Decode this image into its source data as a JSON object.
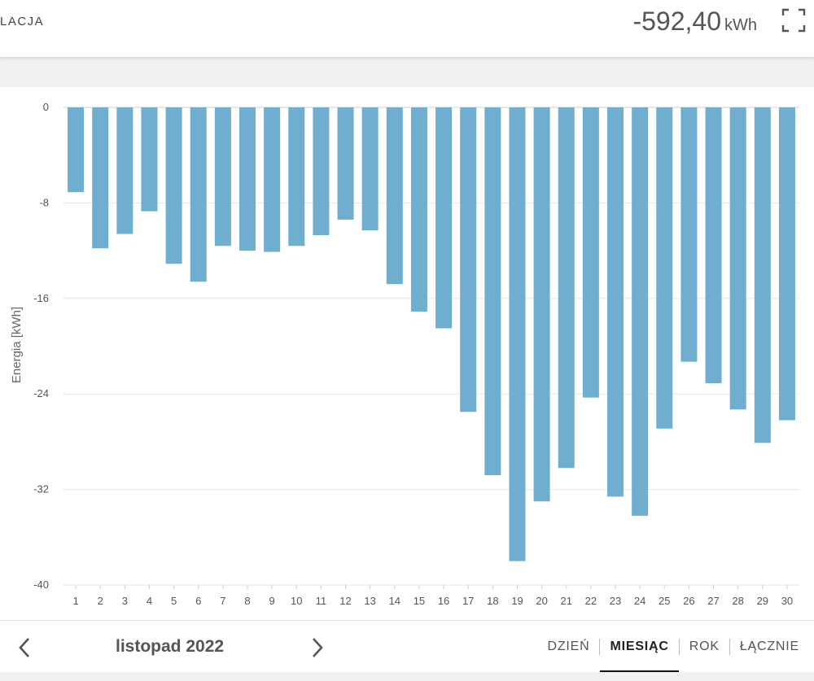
{
  "header": {
    "title": "LACJA",
    "total_value": "-592,40",
    "total_unit": "kWh",
    "expand_icon": "fullscreen-icon"
  },
  "chart_data": {
    "type": "bar",
    "ylabel": "Energia [kWh]",
    "ylim": [
      -40,
      0
    ],
    "yticks": [
      "0",
      "-8",
      "-16",
      "-24",
      "-32",
      "-40"
    ],
    "grid": true,
    "color": "#70AECF",
    "categories": [
      "1",
      "2",
      "3",
      "4",
      "5",
      "6",
      "7",
      "8",
      "9",
      "10",
      "11",
      "12",
      "13",
      "14",
      "15",
      "16",
      "17",
      "18",
      "19",
      "20",
      "21",
      "22",
      "23",
      "24",
      "25",
      "26",
      "27",
      "28",
      "29",
      "30"
    ],
    "values": [
      -7.1,
      -11.8,
      -10.6,
      -8.7,
      -13.1,
      -14.6,
      -11.6,
      -12.0,
      -12.1,
      -11.6,
      -10.7,
      -9.4,
      -10.3,
      -14.8,
      -17.1,
      -18.5,
      -25.5,
      -30.8,
      -38.0,
      -33.0,
      -30.2,
      -24.3,
      -32.6,
      -34.2,
      -26.9,
      -21.3,
      -23.1,
      -25.3,
      -28.1,
      -26.2
    ]
  },
  "footer": {
    "period": "listopad 2022",
    "prev_icon": "chevron-left-icon",
    "next_icon": "chevron-right-icon",
    "tabs": [
      {
        "label": "DZIEŃ",
        "active": false
      },
      {
        "label": "MIESIĄC",
        "active": true
      },
      {
        "label": "ROK",
        "active": false
      },
      {
        "label": "ŁĄCZNIE",
        "active": false
      }
    ]
  }
}
